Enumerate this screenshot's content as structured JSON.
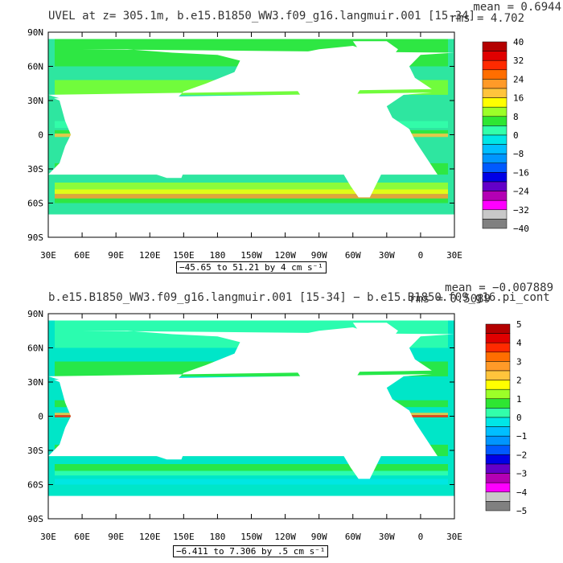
{
  "colors": {
    "land": "#ffffff",
    "frame": "#000000"
  },
  "panels": [
    {
      "id": "top",
      "title": "UVEL at z= 305.1m, b.e15.B1850_WW3.f09_g16.langmuir.001 [15-34]",
      "mean": "mean = 0.6944",
      "rms": "rms = 4.702",
      "range": "−45.65 to 51.21 by 4 cm s⁻¹",
      "colorbar": {
        "labels": [
          "40",
          "32",
          "24",
          "16",
          "8",
          "0",
          "−8",
          "−16",
          "−24",
          "−32",
          "−40"
        ],
        "colors": [
          "#b40000",
          "#e00000",
          "#ff2a00",
          "#ff6e00",
          "#ff9a28",
          "#ffc43c",
          "#ffff00",
          "#9cff28",
          "#2ee632",
          "#32ffaa",
          "#00e6e6",
          "#00bfff",
          "#0096ff",
          "#005aff",
          "#0000e6",
          "#6400c8",
          "#b400b4",
          "#ff00ff",
          "#c8c8c8",
          "#808080"
        ]
      },
      "ocean_color": "#2ee6a0"
    },
    {
      "id": "bottom",
      "title": "b.e15.B1850_WW3.f09_g16.langmuir.001 [15-34] − b.e15.B1850.f09_g16.pi_cont",
      "mean": "mean = −0.007889",
      "rms": "rms = 0.5089",
      "range": "−6.411 to 7.306 by .5 cm s⁻¹",
      "colorbar": {
        "labels": [
          "5",
          "4",
          "3",
          "2",
          "1",
          "0",
          "−1",
          "−2",
          "−3",
          "−4",
          "−5"
        ],
        "colors": [
          "#b40000",
          "#e00000",
          "#ff2a00",
          "#ff6e00",
          "#ff9a28",
          "#ffc43c",
          "#ffff00",
          "#9cff28",
          "#2ee632",
          "#32ffaa",
          "#00e6e6",
          "#00bfff",
          "#0096ff",
          "#005aff",
          "#0000e6",
          "#6400c8",
          "#b400b4",
          "#ff00ff",
          "#c8c8c8",
          "#808080"
        ]
      },
      "ocean_color": "#00e6c8"
    }
  ],
  "lat_labels": [
    "90N",
    "60N",
    "30N",
    "0",
    "30S",
    "60S",
    "90S"
  ],
  "lon_labels": [
    "30E",
    "60E",
    "90E",
    "120E",
    "150E",
    "180",
    "150W",
    "120W",
    "90W",
    "60W",
    "30W",
    "0",
    "30E"
  ]
}
